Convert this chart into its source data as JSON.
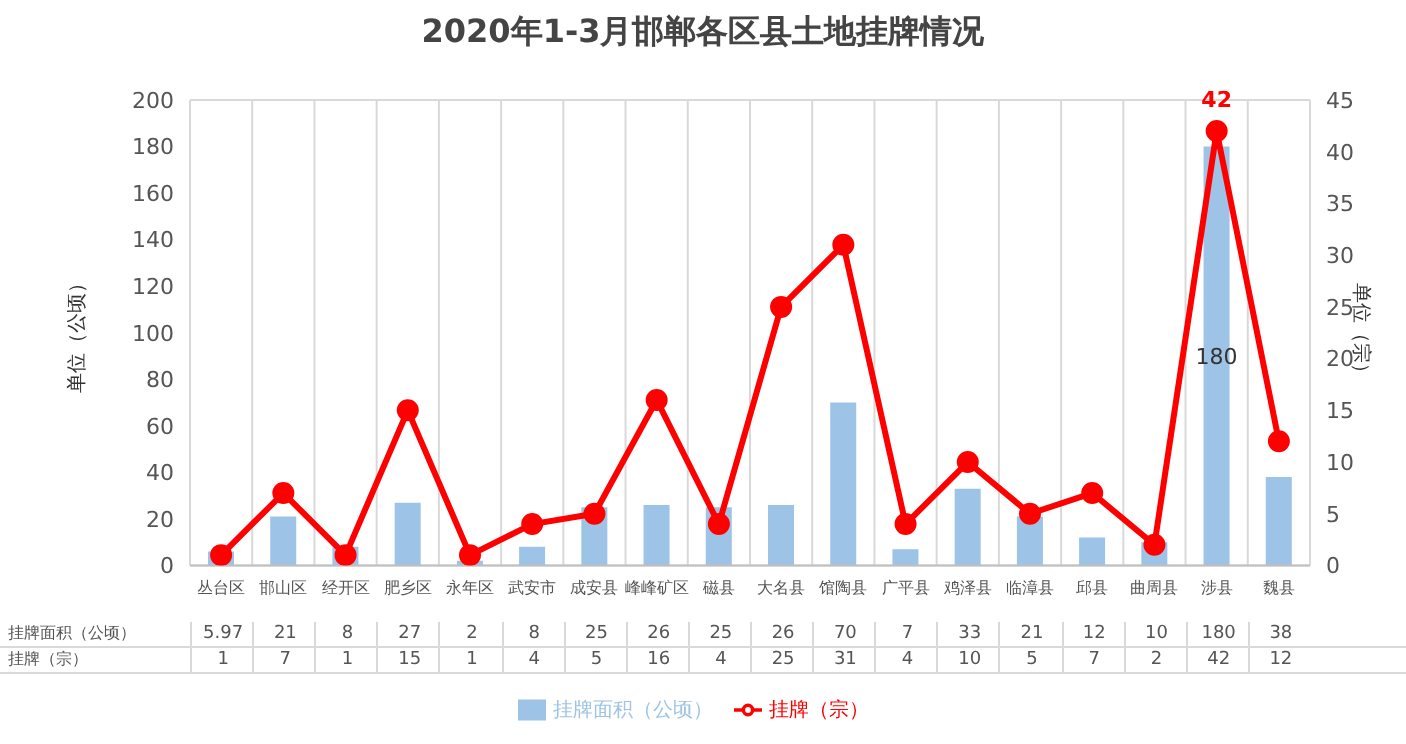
{
  "chart_data": {
    "type": "bar",
    "title": "2020年1-3月邯郸各区县土地挂牌情况",
    "ylabel": "单位（公顷）",
    "y2label": "单位（宗）",
    "categories": [
      "丛台区",
      "邯山区",
      "经开区",
      "肥乡区",
      "永年区",
      "武安市",
      "成安县",
      "峰峰矿区",
      "磁县",
      "大名县",
      "馆陶县",
      "广平县",
      "鸡泽县",
      "临漳县",
      "邱县",
      "曲周县",
      "涉县",
      "魏县"
    ],
    "series": [
      {
        "name": "挂牌面积（公顷）",
        "color": "#9dc3e6",
        "values": [
          5.97,
          21,
          8,
          27,
          2,
          8,
          25,
          26,
          25,
          26,
          70,
          7,
          33,
          21,
          12,
          10,
          180,
          38
        ],
        "value_labels": [
          "5.97",
          "21",
          "8",
          "27",
          "2",
          "8",
          "25",
          "26",
          "25",
          "26",
          "70",
          "7",
          "33",
          "21",
          "12",
          "10",
          "180",
          "38"
        ]
      },
      {
        "name": "挂牌（宗）",
        "type": "line",
        "axis": "y2",
        "color": "#ff0000",
        "values": [
          1,
          7,
          1,
          15,
          1,
          4,
          5,
          16,
          4,
          25,
          31,
          4,
          10,
          5,
          7,
          2,
          42,
          12
        ],
        "value_labels": [
          "1",
          "7",
          "1",
          "15",
          "1",
          "4",
          "5",
          "16",
          "4",
          "25",
          "31",
          "4",
          "10",
          "5",
          "7",
          "2",
          "42",
          "12"
        ]
      }
    ],
    "ylim": [
      0,
      200
    ],
    "yticks": [
      0,
      20,
      40,
      60,
      80,
      100,
      120,
      140,
      160,
      180,
      200
    ],
    "y2lim": [
      0,
      45
    ],
    "y2ticks": [
      0,
      5,
      10,
      15,
      20,
      25,
      30,
      35,
      40,
      45
    ],
    "grid": true,
    "legend": "bottom",
    "marker": "circle"
  }
}
